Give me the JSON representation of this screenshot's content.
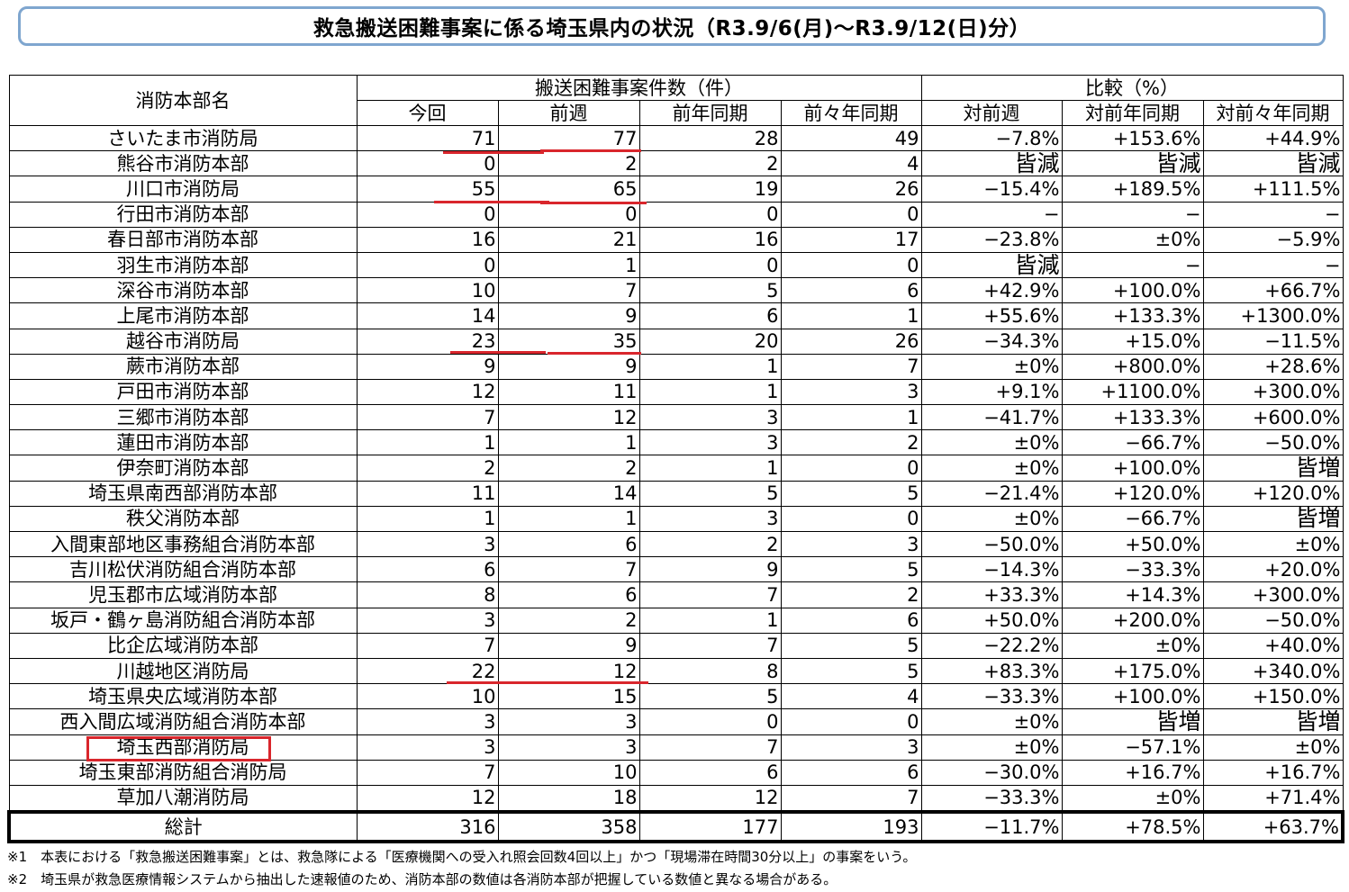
{
  "title": "救急搬送困難事案に係る埼玉県内の状況（R3.9/6(月)～R3.9/12(日)分）",
  "headers": {
    "dept": "消防本部名",
    "group_count": "搬送困難事案件数（件）",
    "group_compare": "比較（%）",
    "cols": [
      "今回",
      "前週",
      "前年同期",
      "前々年同期",
      "対前週",
      "対前年同期",
      "対前々年同期"
    ]
  },
  "rows": [
    {
      "name": "さいたま市消防局",
      "cur": "71",
      "prev_week": "77",
      "prev_year": "28",
      "prev2_year": "49",
      "vs_week": "−7.8%",
      "vs_year": "+153.6%",
      "vs_2year": "+44.9%"
    },
    {
      "name": "熊谷市消防本部",
      "cur": "0",
      "prev_week": "2",
      "prev_year": "2",
      "prev2_year": "4",
      "vs_week": "皆減",
      "vs_year": "皆減",
      "vs_2year": "皆減"
    },
    {
      "name": "川口市消防局",
      "cur": "55",
      "prev_week": "65",
      "prev_year": "19",
      "prev2_year": "26",
      "vs_week": "−15.4%",
      "vs_year": "+189.5%",
      "vs_2year": "+111.5%"
    },
    {
      "name": "行田市消防本部",
      "cur": "0",
      "prev_week": "0",
      "prev_year": "0",
      "prev2_year": "0",
      "vs_week": "−",
      "vs_year": "−",
      "vs_2year": "−"
    },
    {
      "name": "春日部市消防本部",
      "cur": "16",
      "prev_week": "21",
      "prev_year": "16",
      "prev2_year": "17",
      "vs_week": "−23.8%",
      "vs_year": "±0%",
      "vs_2year": "−5.9%"
    },
    {
      "name": "羽生市消防本部",
      "cur": "0",
      "prev_week": "1",
      "prev_year": "0",
      "prev2_year": "0",
      "vs_week": "皆減",
      "vs_year": "−",
      "vs_2year": "−"
    },
    {
      "name": "深谷市消防本部",
      "cur": "10",
      "prev_week": "7",
      "prev_year": "5",
      "prev2_year": "6",
      "vs_week": "+42.9%",
      "vs_year": "+100.0%",
      "vs_2year": "+66.7%"
    },
    {
      "name": "上尾市消防本部",
      "cur": "14",
      "prev_week": "9",
      "prev_year": "6",
      "prev2_year": "1",
      "vs_week": "+55.6%",
      "vs_year": "+133.3%",
      "vs_2year": "+1300.0%"
    },
    {
      "name": "越谷市消防局",
      "cur": "23",
      "prev_week": "35",
      "prev_year": "20",
      "prev2_year": "26",
      "vs_week": "−34.3%",
      "vs_year": "+15.0%",
      "vs_2year": "−11.5%"
    },
    {
      "name": "蕨市消防本部",
      "cur": "9",
      "prev_week": "9",
      "prev_year": "1",
      "prev2_year": "7",
      "vs_week": "±0%",
      "vs_year": "+800.0%",
      "vs_2year": "+28.6%"
    },
    {
      "name": "戸田市消防本部",
      "cur": "12",
      "prev_week": "11",
      "prev_year": "1",
      "prev2_year": "3",
      "vs_week": "+9.1%",
      "vs_year": "+1100.0%",
      "vs_2year": "+300.0%"
    },
    {
      "name": "三郷市消防本部",
      "cur": "7",
      "prev_week": "12",
      "prev_year": "3",
      "prev2_year": "1",
      "vs_week": "−41.7%",
      "vs_year": "+133.3%",
      "vs_2year": "+600.0%"
    },
    {
      "name": "蓮田市消防本部",
      "cur": "1",
      "prev_week": "1",
      "prev_year": "3",
      "prev2_year": "2",
      "vs_week": "±0%",
      "vs_year": "−66.7%",
      "vs_2year": "−50.0%"
    },
    {
      "name": "伊奈町消防本部",
      "cur": "2",
      "prev_week": "2",
      "prev_year": "1",
      "prev2_year": "0",
      "vs_week": "±0%",
      "vs_year": "+100.0%",
      "vs_2year": "皆増"
    },
    {
      "name": "埼玉県南西部消防本部",
      "cur": "11",
      "prev_week": "14",
      "prev_year": "5",
      "prev2_year": "5",
      "vs_week": "−21.4%",
      "vs_year": "+120.0%",
      "vs_2year": "+120.0%"
    },
    {
      "name": "秩父消防本部",
      "cur": "1",
      "prev_week": "1",
      "prev_year": "3",
      "prev2_year": "0",
      "vs_week": "±0%",
      "vs_year": "−66.7%",
      "vs_2year": "皆増"
    },
    {
      "name": "入間東部地区事務組合消防本部",
      "cur": "3",
      "prev_week": "6",
      "prev_year": "2",
      "prev2_year": "3",
      "vs_week": "−50.0%",
      "vs_year": "+50.0%",
      "vs_2year": "±0%"
    },
    {
      "name": "吉川松伏消防組合消防本部",
      "cur": "6",
      "prev_week": "7",
      "prev_year": "9",
      "prev2_year": "5",
      "vs_week": "−14.3%",
      "vs_year": "−33.3%",
      "vs_2year": "+20.0%"
    },
    {
      "name": "児玉郡市広域消防本部",
      "cur": "8",
      "prev_week": "6",
      "prev_year": "7",
      "prev2_year": "2",
      "vs_week": "+33.3%",
      "vs_year": "+14.3%",
      "vs_2year": "+300.0%"
    },
    {
      "name": "坂戸・鶴ヶ島消防組合消防本部",
      "cur": "3",
      "prev_week": "2",
      "prev_year": "1",
      "prev2_year": "6",
      "vs_week": "+50.0%",
      "vs_year": "+200.0%",
      "vs_2year": "−50.0%"
    },
    {
      "name": "比企広域消防本部",
      "cur": "7",
      "prev_week": "9",
      "prev_year": "7",
      "prev2_year": "5",
      "vs_week": "−22.2%",
      "vs_year": "±0%",
      "vs_2year": "+40.0%"
    },
    {
      "name": "川越地区消防局",
      "cur": "22",
      "prev_week": "12",
      "prev_year": "8",
      "prev2_year": "5",
      "vs_week": "+83.3%",
      "vs_year": "+175.0%",
      "vs_2year": "+340.0%"
    },
    {
      "name": "埼玉県央広域消防本部",
      "cur": "10",
      "prev_week": "15",
      "prev_year": "5",
      "prev2_year": "4",
      "vs_week": "−33.3%",
      "vs_year": "+100.0%",
      "vs_2year": "+150.0%"
    },
    {
      "name": "西入間広域消防組合消防本部",
      "cur": "3",
      "prev_week": "3",
      "prev_year": "0",
      "prev2_year": "0",
      "vs_week": "±0%",
      "vs_year": "皆増",
      "vs_2year": "皆増"
    },
    {
      "name": "埼玉西部消防局",
      "cur": "3",
      "prev_week": "3",
      "prev_year": "7",
      "prev2_year": "3",
      "vs_week": "±0%",
      "vs_year": "−57.1%",
      "vs_2year": "±0%"
    },
    {
      "name": "埼玉東部消防組合消防局",
      "cur": "7",
      "prev_week": "10",
      "prev_year": "6",
      "prev2_year": "6",
      "vs_week": "−30.0%",
      "vs_year": "+16.7%",
      "vs_2year": "+16.7%"
    },
    {
      "name": "草加八潮消防局",
      "cur": "12",
      "prev_week": "18",
      "prev_year": "12",
      "prev2_year": "7",
      "vs_week": "−33.3%",
      "vs_year": "±0%",
      "vs_2year": "+71.4%"
    }
  ],
  "total": {
    "name": "総計",
    "cur": "316",
    "prev_week": "358",
    "prev_year": "177",
    "prev2_year": "193",
    "vs_week": "−11.7%",
    "vs_year": "+78.5%",
    "vs_2year": "+63.7%"
  },
  "notes": [
    "※1　本表における「救急搬送困難事案」とは、救急隊による「医療機関への受入れ照会回数4回以上」かつ「現場滞在時間30分以上」の事案をいう。",
    "※2　埼玉県が救急医療情報システムから抽出した速報値のため、消防本部の数値は各消防本部が把握している数値と異なる場合がある。"
  ],
  "highlight_color": "#d9262c"
}
